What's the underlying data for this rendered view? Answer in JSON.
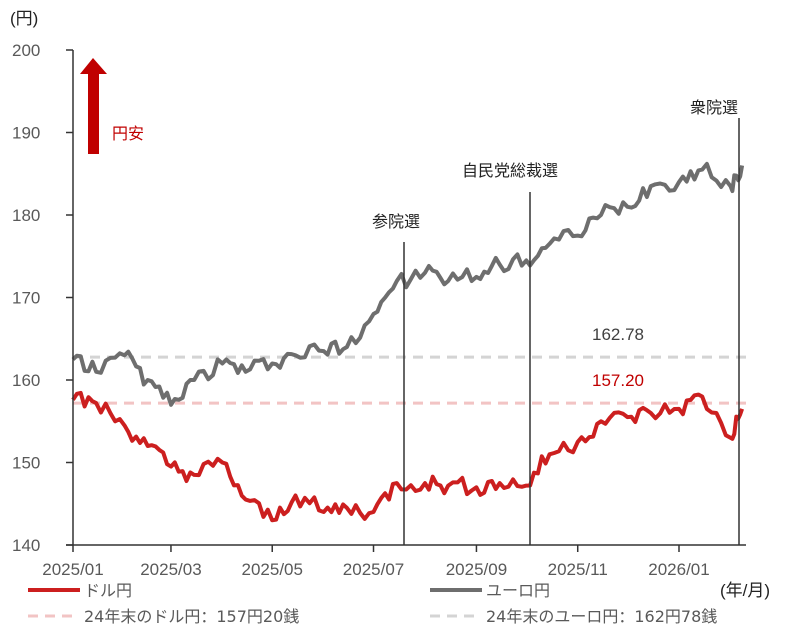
{
  "chart_data": {
    "type": "line",
    "title": "",
    "ylabel": "(円)",
    "xlabel": "(年/月)",
    "ylim": [
      140,
      200
    ],
    "yticks": [
      140,
      150,
      160,
      170,
      180,
      190,
      200
    ],
    "xticks": [
      "2025/01",
      "2025/03",
      "2025/05",
      "2025/07",
      "2025/09",
      "2025/11",
      "2026/01"
    ],
    "grid": false,
    "legend_position": "bottom",
    "direction_note": "円安",
    "x": [
      "2025/01/01",
      "2025/01/15",
      "2025/02/01",
      "2025/02/15",
      "2025/03/01",
      "2025/03/15",
      "2025/04/01",
      "2025/04/15",
      "2025/05/01",
      "2025/05/15",
      "2025/06/01",
      "2025/06/15",
      "2025/07/01",
      "2025/07/15",
      "2025/08/01",
      "2025/08/15",
      "2025/09/01",
      "2025/09/15",
      "2025/10/01",
      "2025/10/15",
      "2025/11/01",
      "2025/11/15",
      "2025/12/01",
      "2025/12/15",
      "2026/01/01",
      "2026/01/15",
      "2026/02/01",
      "2026/02/08"
    ],
    "series": [
      {
        "name": "ドル円",
        "color": "#cc1f1f",
        "style": "solid",
        "values": [
          157.6,
          157.2,
          154.5,
          152.0,
          149.5,
          148.5,
          150.0,
          145.5,
          143.0,
          146.0,
          144.0,
          144.5,
          144.0,
          147.5,
          147.5,
          147.2,
          147.0,
          147.5,
          147.2,
          151.0,
          152.5,
          155.0,
          155.5,
          156.0,
          156.5,
          158.0,
          153.0,
          156.5
        ]
      },
      {
        "name": "ユーロ円",
        "color": "#6e6e6e",
        "style": "solid",
        "values": [
          162.5,
          161.0,
          163.0,
          160.0,
          157.0,
          160.0,
          162.0,
          161.0,
          162.0,
          163.0,
          163.5,
          164.0,
          168.0,
          172.0,
          173.0,
          172.0,
          172.5,
          174.0,
          174.5,
          176.5,
          177.5,
          180.0,
          181.0,
          183.5,
          184.0,
          185.5,
          183.5,
          186.0
        ]
      },
      {
        "name": "24年末のドル円：157円20銭",
        "color": "#f2c4c4",
        "style": "dashed",
        "values_constant": 157.2
      },
      {
        "name": "24年末のユーロ円：162円78銭",
        "color": "#d4d4d4",
        "style": "dashed",
        "values_constant": 162.78
      }
    ],
    "annotations": [
      {
        "label": "参院選",
        "x": "2025/07/20"
      },
      {
        "label": "自民党総裁選",
        "x": "2025/10/04"
      },
      {
        "label": "衆院選",
        "x": "2026/02/08"
      },
      {
        "label": "162.78",
        "y": 162.78
      },
      {
        "label": "157.20",
        "y": 157.2
      }
    ]
  },
  "labels": {
    "yunit": "(円)",
    "xunit": "(年/月)",
    "yen_weak": "円安",
    "ref_euro": "162.78",
    "ref_usd": "157.20",
    "event1": "参院選",
    "event2": "自民党総裁選",
    "event3": "衆院選"
  },
  "legend": {
    "usd": "ドル円",
    "eur": "ユーロ円",
    "usd_ref": "24年末のドル円：157円20銭",
    "eur_ref": "24年末のユーロ円：162円78銭"
  },
  "colors": {
    "usd": "#cc1f1f",
    "eur": "#6e6e6e",
    "usd_ref": "#f2c4c4",
    "eur_ref": "#d4d4d4",
    "arrow": "#c00000"
  }
}
